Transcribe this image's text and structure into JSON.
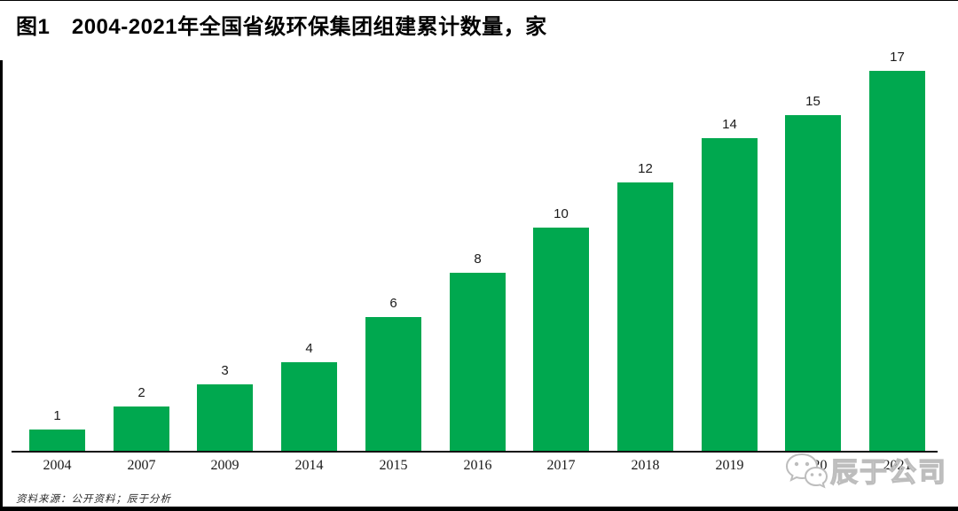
{
  "title": "图1　2004-2021年全国省级环保集团组建累计数量，家",
  "source_note": "资料来源：公开资料；辰于分析",
  "watermark": {
    "brand": "辰于公司",
    "icon": "wechat-icon"
  },
  "colors": {
    "bar": "#00a84f",
    "axis": "#111111",
    "title_text": "#000000",
    "watermark_gray": "#bdbdbd"
  },
  "chart_data": {
    "type": "bar",
    "title": "图1 2004-2021年全国省级环保集团组建累计数量，家",
    "categories": [
      "2004",
      "2007",
      "2009",
      "2014",
      "2015",
      "2016",
      "2017",
      "2018",
      "2019",
      "2020",
      "2021"
    ],
    "values": [
      1,
      2,
      3,
      4,
      6,
      8,
      10,
      12,
      14,
      15,
      17
    ],
    "xlabel": "",
    "ylabel": "家",
    "ylim": [
      0,
      17.5
    ],
    "grid": false,
    "legend": null,
    "value_labels_shown": true,
    "bar_color": "#00a84f"
  }
}
